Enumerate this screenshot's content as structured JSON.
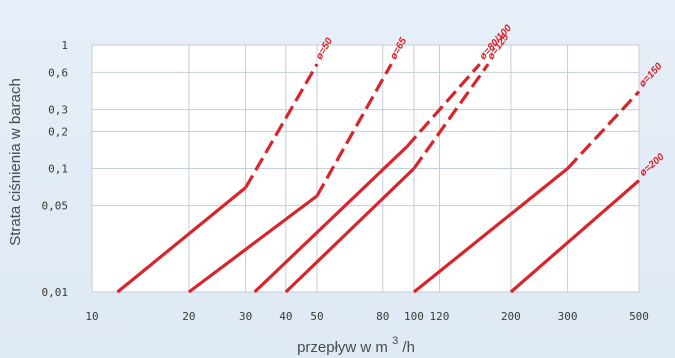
{
  "chart_data": {
    "type": "line",
    "x_scale": "log",
    "y_scale": "log",
    "xlabel": "przepływ w m",
    "xlabel_sup": "3",
    "xlabel_tail": "/h",
    "ylabel": "Strata ciśnienia w barach",
    "x_ticks": [
      10,
      20,
      30,
      40,
      50,
      80,
      100,
      120,
      200,
      300,
      500
    ],
    "x_tick_labels": [
      "10",
      "20",
      "30",
      "40",
      "50",
      "80",
      "100",
      "120",
      "200",
      "300",
      "500"
    ],
    "y_ticks": [
      0.01,
      0.05,
      0.1,
      0.2,
      0.3,
      0.6,
      1
    ],
    "y_tick_labels": [
      "0,01",
      "0,05",
      "0,1",
      "0,2",
      "0,3",
      "0,6",
      "1"
    ],
    "xlim": [
      10,
      500
    ],
    "ylim": [
      0.01,
      1
    ],
    "grid": true,
    "color": "#d9242b",
    "series": [
      {
        "name": "ø=50",
        "x": [
          12,
          30,
          50
        ],
        "y": [
          0.01,
          0.07,
          0.7
        ],
        "solid_until_x": 30
      },
      {
        "name": "ø=65",
        "x": [
          20,
          50,
          85
        ],
        "y": [
          0.01,
          0.06,
          0.7
        ],
        "solid_until_x": 50
      },
      {
        "name": "ø=80/100",
        "x": [
          32,
          95,
          160
        ],
        "y": [
          0.01,
          0.15,
          0.7
        ],
        "solid_until_x": 95
      },
      {
        "name": "ø=125",
        "x": [
          40,
          100,
          170
        ],
        "y": [
          0.01,
          0.1,
          0.7
        ],
        "solid_until_x": 100
      },
      {
        "name": "ø=150",
        "x": [
          100,
          300,
          500
        ],
        "y": [
          0.01,
          0.1,
          0.42
        ],
        "solid_until_x": 300
      },
      {
        "name": "ø=200",
        "x": [
          200,
          500
        ],
        "y": [
          0.01,
          0.08
        ],
        "solid_until_x": 500
      }
    ]
  }
}
